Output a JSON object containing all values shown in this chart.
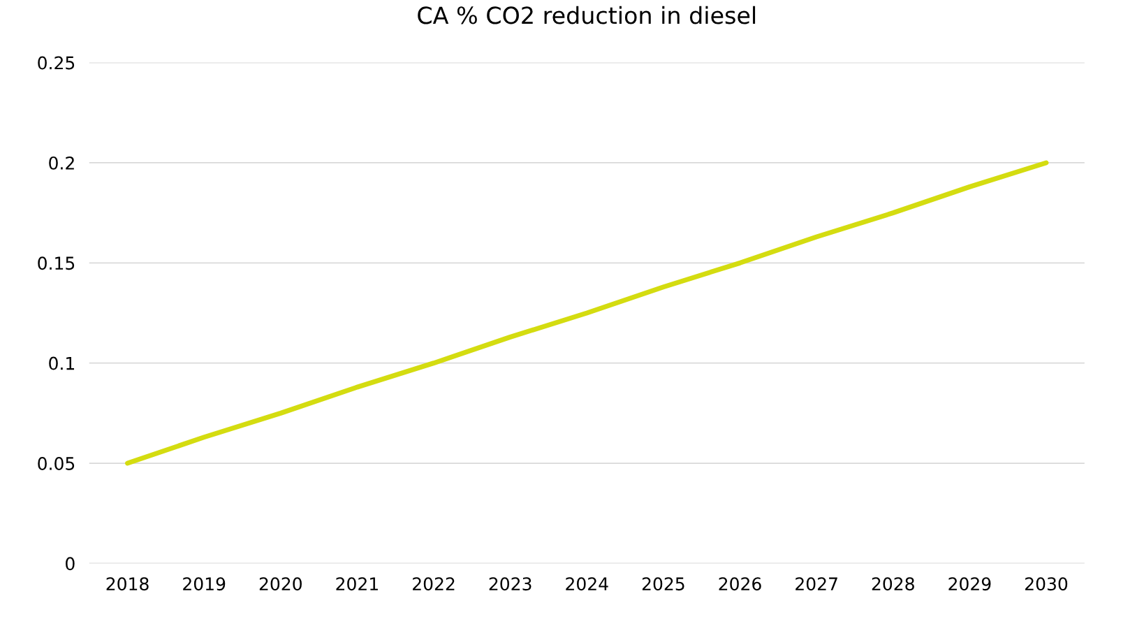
{
  "chart_data": {
    "type": "line",
    "title": "CA % CO2 reduction in diesel",
    "categories": [
      "2018",
      "2019",
      "2020",
      "2021",
      "2022",
      "2023",
      "2024",
      "2025",
      "2026",
      "2027",
      "2028",
      "2029",
      "2030"
    ],
    "series": [
      {
        "color": "#d4dc10",
        "values": [
          0.05,
          0.063,
          0.075,
          0.088,
          0.1,
          0.113,
          0.125,
          0.138,
          0.15,
          0.163,
          0.175,
          0.188,
          0.2
        ]
      }
    ],
    "ylim": [
      0,
      0.25
    ],
    "yticks": [
      0,
      0.05,
      0.1,
      0.15,
      0.2,
      0.25
    ],
    "grid": "y",
    "marker": "none",
    "line_style": "solid"
  }
}
